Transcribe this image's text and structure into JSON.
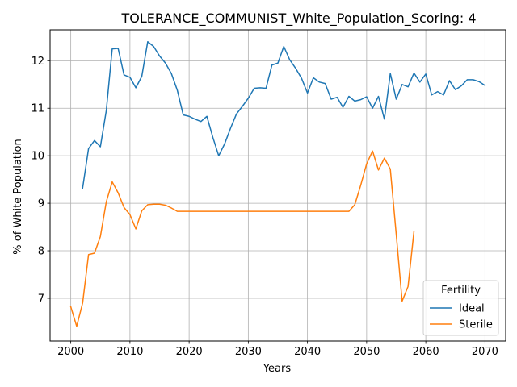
{
  "chart_data": {
    "type": "line",
    "title": "TOLERANCE_COMMUNIST_White_Population_Scoring: 4",
    "xlabel": "Years",
    "ylabel": "% of White Population",
    "xlim": [
      1996.5,
      2073.5
    ],
    "ylim": [
      6.1,
      12.65
    ],
    "xticks": [
      2000,
      2010,
      2020,
      2030,
      2040,
      2050,
      2060,
      2070
    ],
    "yticks": [
      7,
      8,
      9,
      10,
      11,
      12
    ],
    "grid": true,
    "legend": {
      "title": "Fertility",
      "placement": "lower-right"
    },
    "series": [
      {
        "name": "Ideal",
        "color": "#1f77b4",
        "x": [
          2002,
          2003,
          2004,
          2005,
          2006,
          2007,
          2008,
          2009,
          2010,
          2011,
          2012,
          2013,
          2014,
          2015,
          2016,
          2017,
          2018,
          2019,
          2020,
          2021,
          2022,
          2023,
          2024,
          2025,
          2026,
          2027,
          2028,
          2029,
          2030,
          2031,
          2032,
          2033,
          2034,
          2035,
          2036,
          2037,
          2038,
          2039,
          2040,
          2041,
          2042,
          2043,
          2044,
          2045,
          2046,
          2047,
          2048,
          2049,
          2050,
          2051,
          2052,
          2053,
          2054,
          2055,
          2056,
          2057,
          2058,
          2059,
          2060,
          2061,
          2062,
          2063,
          2064,
          2065,
          2066,
          2067,
          2068,
          2069,
          2070
        ],
        "values": [
          9.32,
          10.15,
          10.32,
          10.19,
          10.95,
          12.25,
          12.26,
          11.7,
          11.65,
          11.43,
          11.67,
          12.4,
          12.3,
          12.1,
          11.95,
          11.73,
          11.38,
          10.86,
          10.83,
          10.77,
          10.72,
          10.83,
          10.39,
          10.0,
          10.25,
          10.58,
          10.88,
          11.04,
          11.21,
          11.42,
          11.43,
          11.42,
          11.91,
          11.95,
          12.3,
          12.02,
          11.84,
          11.63,
          11.32,
          11.64,
          11.55,
          11.52,
          11.19,
          11.23,
          11.02,
          11.25,
          11.15,
          11.18,
          11.24,
          11.0,
          11.25,
          10.77,
          11.73,
          11.19,
          11.5,
          11.45,
          11.74,
          11.55,
          11.72,
          11.28,
          11.35,
          11.28,
          11.58,
          11.39,
          11.47,
          11.6,
          11.6,
          11.56,
          11.48
        ]
      },
      {
        "name": "Sterile",
        "color": "#ff7f0e",
        "x": [
          2000,
          2001,
          2002,
          2003,
          2004,
          2005,
          2006,
          2007,
          2008,
          2009,
          2010,
          2011,
          2012,
          2013,
          2014,
          2015,
          2016,
          2017,
          2018,
          2019,
          2020,
          2021,
          2022,
          2023,
          2024,
          2025,
          2026,
          2027,
          2028,
          2029,
          2030,
          2031,
          2032,
          2033,
          2034,
          2035,
          2036,
          2037,
          2038,
          2039,
          2040,
          2041,
          2042,
          2043,
          2044,
          2045,
          2046,
          2047,
          2048,
          2049,
          2050,
          2051,
          2052,
          2053,
          2054,
          2055,
          2056,
          2057,
          2058
        ],
        "values": [
          6.82,
          6.41,
          6.9,
          7.92,
          7.95,
          8.3,
          9.03,
          9.45,
          9.22,
          8.91,
          8.76,
          8.46,
          8.84,
          8.97,
          8.98,
          8.98,
          8.96,
          8.9,
          8.83,
          8.83,
          8.83,
          8.83,
          8.83,
          8.83,
          8.83,
          8.83,
          8.83,
          8.83,
          8.83,
          8.83,
          8.83,
          8.83,
          8.83,
          8.83,
          8.83,
          8.83,
          8.83,
          8.83,
          8.83,
          8.83,
          8.83,
          8.83,
          8.83,
          8.83,
          8.83,
          8.83,
          8.83,
          8.83,
          8.97,
          9.38,
          9.83,
          10.1,
          9.7,
          9.95,
          9.72,
          8.35,
          6.94,
          7.25,
          8.41
        ]
      }
    ]
  }
}
